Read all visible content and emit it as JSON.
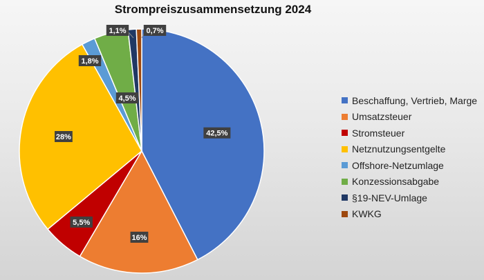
{
  "chart_data": {
    "type": "pie",
    "title": "Strompreiszusammensetzung 2024",
    "legend_position": "right",
    "slices": [
      {
        "label": "Beschaffung, Vertrieb, Marge",
        "value": 42.5,
        "display": "42,5%",
        "color": "#4472c4"
      },
      {
        "label": "Umsatzsteuer",
        "value": 16,
        "display": "16%",
        "color": "#ed7d31"
      },
      {
        "label": "Stromsteuer",
        "value": 5.5,
        "display": "5,5%",
        "color": "#c00000"
      },
      {
        "label": "Netznutzungsentgelte",
        "value": 28,
        "display": "28%",
        "color": "#ffc000"
      },
      {
        "label": "Offshore-Netzumlage",
        "value": 1.8,
        "display": "1,8%",
        "color": "#5b9bd5"
      },
      {
        "label": "Konzessionsabgabe",
        "value": 4.5,
        "display": "4,5%",
        "color": "#70ad47"
      },
      {
        "label": "§19-NEV-Umlage",
        "value": 1.1,
        "display": "1,1%",
        "color": "#203864"
      },
      {
        "label": "KWKG",
        "value": 0.7,
        "display": "0,7%",
        "color": "#9e480e"
      }
    ]
  }
}
